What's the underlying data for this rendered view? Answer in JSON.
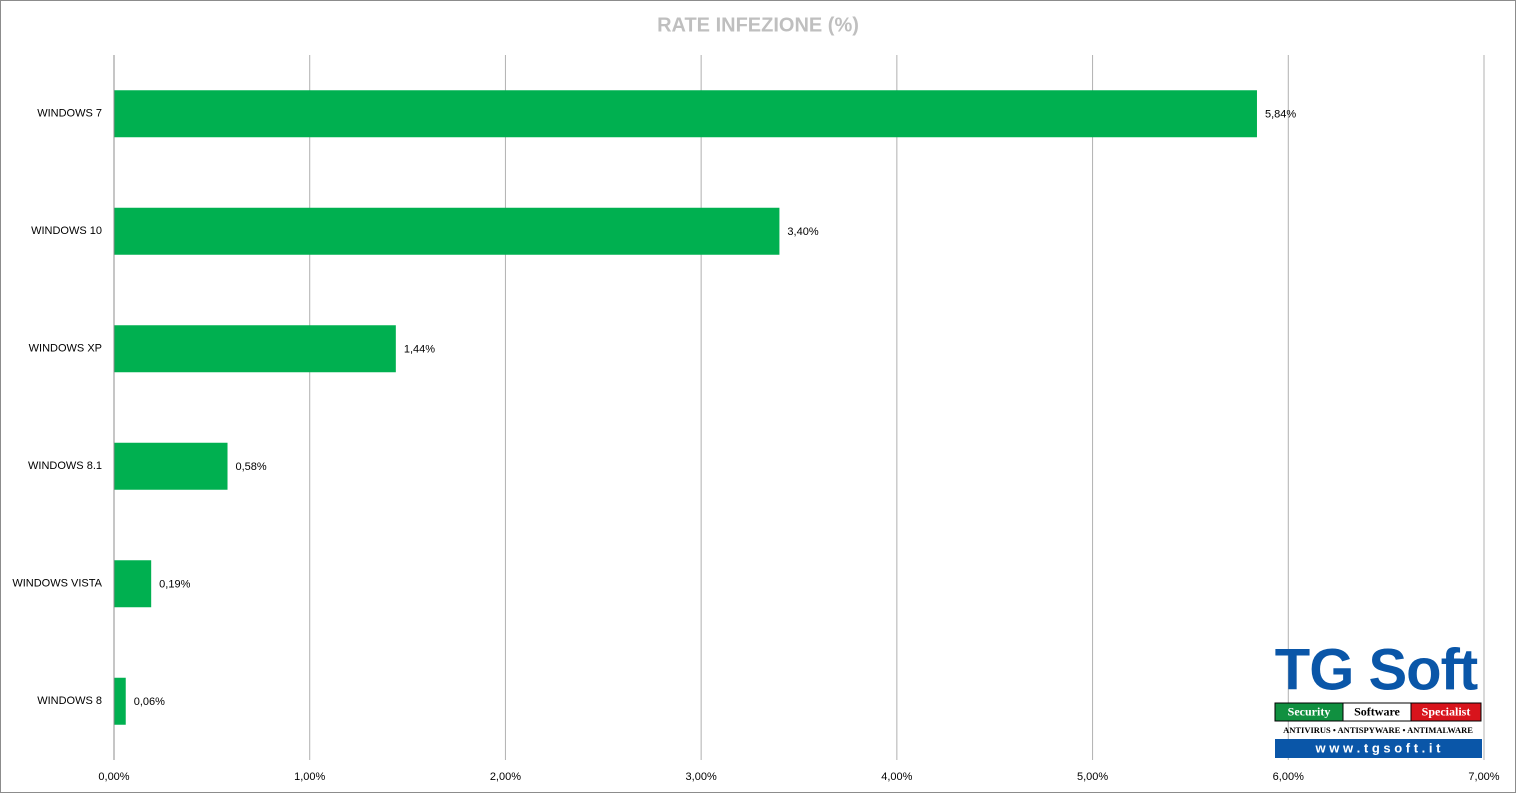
{
  "chart_data": {
    "type": "bar",
    "orientation": "horizontal",
    "title": "RATE INFEZIONE (%)",
    "categories": [
      "WINDOWS 7",
      "WINDOWS 10",
      "WINDOWS XP",
      "WINDOWS 8.1",
      "WINDOWS VISTA",
      "WINDOWS 8"
    ],
    "values": [
      5.84,
      3.4,
      1.44,
      0.58,
      0.19,
      0.06
    ],
    "value_labels": [
      "5,84%",
      "3,40%",
      "1,44%",
      "0,58%",
      "0,19%",
      "0,06%"
    ],
    "color": "#00b050",
    "xlim": [
      0,
      7
    ],
    "xticks": [
      {
        "value": 0,
        "label": "0,00%"
      },
      {
        "value": 1,
        "label": "1,00%"
      },
      {
        "value": 2,
        "label": "2,00%"
      },
      {
        "value": 3,
        "label": "3,00%"
      },
      {
        "value": 4,
        "label": "4,00%"
      },
      {
        "value": 5,
        "label": "5,00%"
      },
      {
        "value": 6,
        "label": "6,00%"
      },
      {
        "value": 7,
        "label": "7,00%"
      }
    ],
    "grid": true
  },
  "logo": {
    "name": "TG Soft",
    "tagline": [
      "Security",
      "Software",
      "Specialist"
    ],
    "products": "ANTIVIRUS • ANTISPYWARE • ANTIMALWARE",
    "website": "w w w . t g s o f t . i t"
  }
}
